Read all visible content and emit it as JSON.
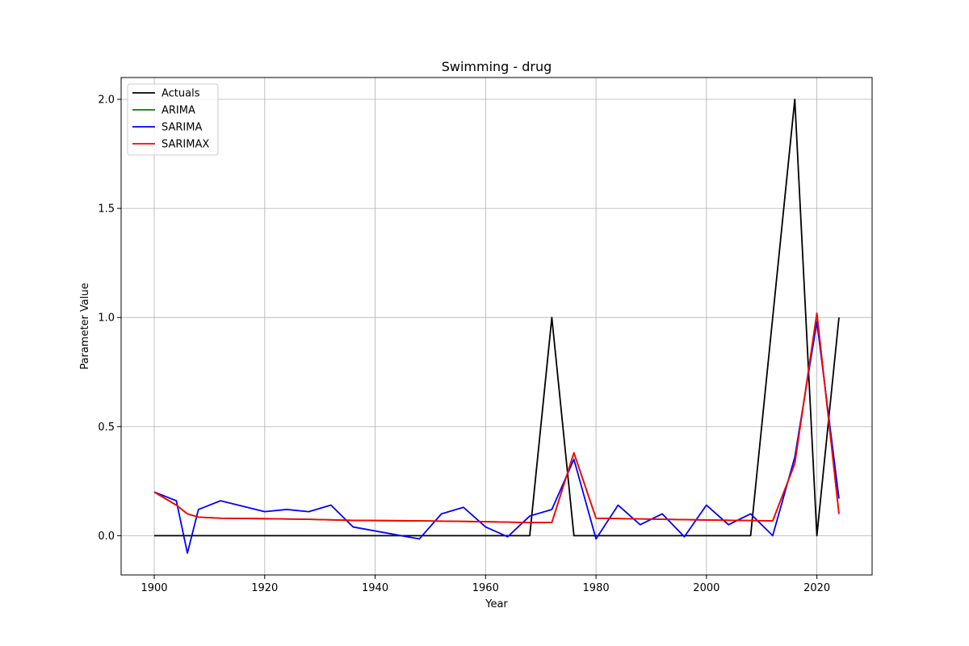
{
  "chart_data": {
    "type": "line",
    "title": "Swimming - drug",
    "xlabel": "Year",
    "ylabel": "Parameter Value",
    "xlim": [
      1894,
      2030
    ],
    "ylim": [
      -0.18,
      2.1
    ],
    "xticks": [
      1900,
      1920,
      1940,
      1960,
      1980,
      2000,
      2020
    ],
    "yticks": [
      0.0,
      0.5,
      1.0,
      1.5,
      2.0
    ],
    "xtick_labels": [
      "1900",
      "1920",
      "1940",
      "1960",
      "1980",
      "2000",
      "2020"
    ],
    "ytick_labels": [
      "0.0",
      "0.5",
      "1.0",
      "1.5",
      "2.0"
    ],
    "grid": true,
    "legend_position": "top-left",
    "series": [
      {
        "name": "Actuals",
        "color": "#000000",
        "x": [
          1900,
          1904,
          1908,
          1912,
          1920,
          1924,
          1928,
          1932,
          1936,
          1948,
          1952,
          1956,
          1960,
          1964,
          1968,
          1972,
          1976,
          1980,
          1984,
          1988,
          1992,
          1996,
          2000,
          2004,
          2008,
          2012,
          2016,
          2020,
          2024
        ],
        "y": [
          0,
          0,
          0,
          0,
          0,
          0,
          0,
          0,
          0,
          0,
          0,
          0,
          0,
          0,
          0,
          1,
          0,
          0,
          0,
          0,
          0,
          0,
          0,
          0,
          0,
          1,
          2,
          0,
          1
        ]
      },
      {
        "name": "ARIMA",
        "color": "#008000",
        "x": [
          1900,
          1904,
          1906,
          1908,
          1912,
          1920,
          1928,
          1936,
          1948,
          1960,
          1968,
          1972,
          1976,
          1980,
          1990,
          2000,
          2012,
          2016,
          2020,
          2024
        ],
        "y": [
          0.2,
          0.14,
          0.1,
          0.085,
          0.08,
          0.078,
          0.075,
          0.07,
          0.068,
          0.064,
          0.06,
          0.06,
          0.38,
          0.08,
          0.076,
          0.072,
          0.068,
          0.33,
          1.02,
          0.1
        ]
      },
      {
        "name": "SARIMA",
        "color": "#0000ff",
        "x": [
          1900,
          1904,
          1906,
          1908,
          1912,
          1920,
          1924,
          1928,
          1932,
          1936,
          1948,
          1952,
          1956,
          1960,
          1964,
          1968,
          1972,
          1976,
          1980,
          1984,
          1988,
          1992,
          1996,
          2000,
          2004,
          2008,
          2012,
          2016,
          2020,
          2024
        ],
        "y": [
          0.2,
          0.16,
          -0.08,
          0.12,
          0.16,
          0.11,
          0.12,
          0.11,
          0.14,
          0.04,
          -0.015,
          0.1,
          0.13,
          0.04,
          -0.005,
          0.09,
          0.12,
          0.35,
          -0.015,
          0.14,
          0.05,
          0.1,
          -0.005,
          0.14,
          0.05,
          0.1,
          0.0,
          0.36,
          0.98,
          0.17
        ]
      },
      {
        "name": "SARIMAX",
        "color": "#ff0000",
        "x": [
          1900,
          1904,
          1906,
          1908,
          1912,
          1920,
          1928,
          1936,
          1948,
          1960,
          1968,
          1972,
          1976,
          1980,
          1990,
          2000,
          2012,
          2016,
          2020,
          2024
        ],
        "y": [
          0.2,
          0.14,
          0.1,
          0.085,
          0.08,
          0.078,
          0.075,
          0.07,
          0.068,
          0.064,
          0.06,
          0.06,
          0.38,
          0.08,
          0.076,
          0.072,
          0.068,
          0.33,
          1.02,
          0.1
        ]
      }
    ]
  }
}
